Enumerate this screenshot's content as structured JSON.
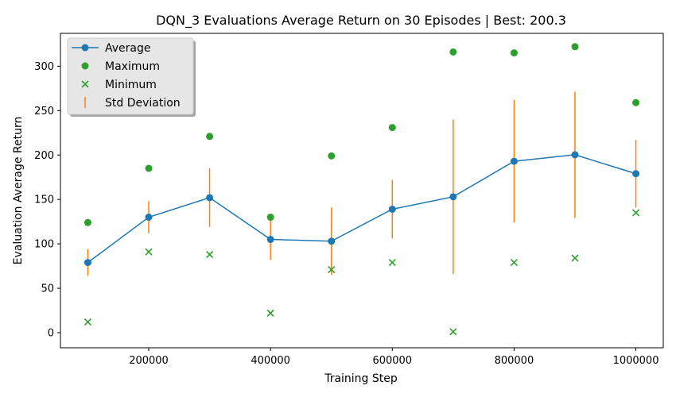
{
  "chart_data": {
    "type": "line",
    "title": "DQN_3 Evaluations Average Return on 30 Episodes | Best: 200.3",
    "xlabel": "Training Step",
    "ylabel": "Evaluation Average Return",
    "xlim": [
      55000,
      1045000
    ],
    "ylim": [
      -17,
      337
    ],
    "xticks": [
      200000,
      400000,
      600000,
      800000,
      1000000
    ],
    "yticks": [
      0,
      50,
      100,
      150,
      200,
      250,
      300
    ],
    "legend_position": "top-left",
    "grid": false,
    "x": [
      100000,
      200000,
      300000,
      400000,
      500000,
      600000,
      700000,
      800000,
      900000,
      1000000
    ],
    "series": [
      {
        "name": "Average",
        "kind": "line-marker",
        "color": "#1f77b4",
        "values": [
          79,
          130,
          152,
          105,
          103,
          139,
          153,
          193,
          200.3,
          179
        ]
      },
      {
        "name": "Maximum",
        "kind": "scatter-circle",
        "color": "#2ca02c",
        "values": [
          124,
          185,
          221,
          130,
          199,
          231,
          316,
          315,
          322,
          259
        ]
      },
      {
        "name": "Minimum",
        "kind": "scatter-x",
        "color": "#2ca02c",
        "values": [
          12,
          91,
          88,
          22,
          71,
          79,
          1,
          79,
          84,
          135
        ]
      },
      {
        "name": "Std Deviation",
        "kind": "errorbar",
        "color": "#ff7f0e",
        "std": [
          15,
          18,
          33,
          23,
          38,
          33,
          87,
          69,
          71,
          38
        ]
      }
    ]
  }
}
